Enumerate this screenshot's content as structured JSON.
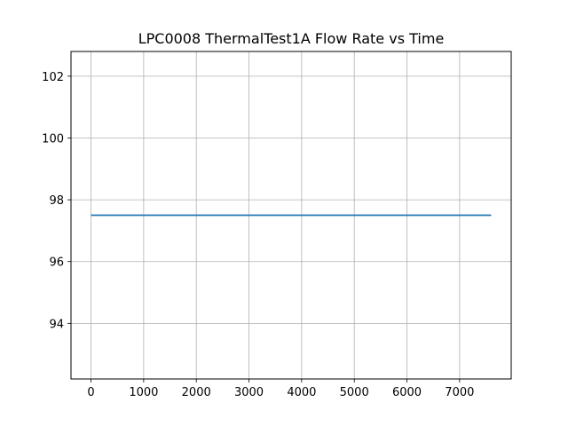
{
  "chart_data": {
    "type": "line",
    "title": "LPC0008 ThermalTest1A Flow Rate vs Time",
    "xlabel": "",
    "ylabel": "",
    "xlim": [
      -380,
      7980
    ],
    "ylim": [
      92.2,
      102.8
    ],
    "grid": true,
    "x_ticks": [
      0,
      1000,
      2000,
      3000,
      4000,
      5000,
      6000,
      7000
    ],
    "x_tick_labels": [
      "0",
      "1000",
      "2000",
      "3000",
      "4000",
      "5000",
      "6000",
      "7000"
    ],
    "y_ticks": [
      94,
      96,
      98,
      100,
      102
    ],
    "y_tick_labels": [
      "94",
      "96",
      "98",
      "100",
      "102"
    ],
    "series": [
      {
        "color": "#1f77b4",
        "x": [
          0,
          7600
        ],
        "y": [
          97.5,
          97.5
        ]
      }
    ]
  }
}
